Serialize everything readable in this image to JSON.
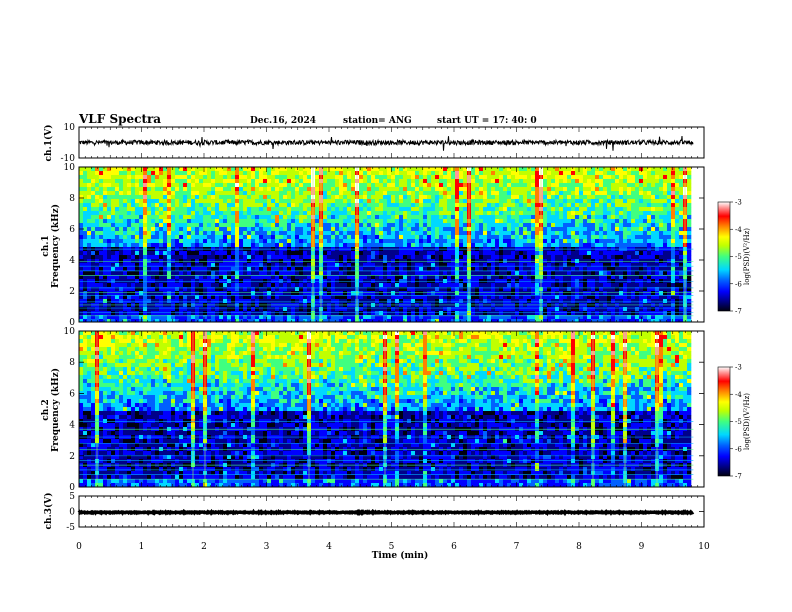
{
  "header": {
    "title": "VLF Spectra",
    "date": "Dec.16, 2024",
    "station": "station= ANG",
    "start": "start  UT =   17: 40: 0"
  },
  "colors": {
    "background_dark": "#000022",
    "colormap": [
      "#000010",
      "#00008a",
      "#0000ff",
      "#0060ff",
      "#00d8ff",
      "#40ff80",
      "#c0ff00",
      "#ffff00",
      "#ff8000",
      "#ff0000",
      "#ff9898",
      "#ffffff"
    ]
  },
  "chart_data": [
    {
      "type": "line",
      "name": "ch1-waveform",
      "ylabel": "ch.1(V)",
      "ylim": [
        -10,
        10
      ],
      "yticks": [
        "10",
        "-10"
      ],
      "baseline": 0,
      "noise_amplitude": 1.5
    },
    {
      "type": "heatmap",
      "name": "ch1-spectrogram",
      "ylabel": "ch.1 Frequency (kHz)",
      "ylim": [
        0,
        10
      ],
      "yticks": [
        "0",
        "2",
        "4",
        "6",
        "8",
        "10"
      ],
      "colorbar": {
        "label": "log(PSD)(V²/Hz)",
        "range": [
          -7,
          -3
        ],
        "ticks": [
          "-3",
          "-4",
          "-5",
          "-6",
          "-7"
        ]
      },
      "noise_lines_khz": [
        0.4,
        0.6,
        0.9,
        1.1,
        1.3,
        1.7,
        1.9,
        2.2,
        2.6,
        3.0,
        3.3,
        3.6,
        3.9,
        4.7
      ]
    },
    {
      "type": "heatmap",
      "name": "ch2-spectrogram",
      "ylabel": "ch.2 Frequency (kHz)",
      "ylim": [
        0,
        10
      ],
      "yticks": [
        "0",
        "2",
        "4",
        "6",
        "8",
        "10"
      ],
      "colorbar": {
        "label": "log(PSD)(V²/Hz)",
        "range": [
          -7,
          -3
        ],
        "ticks": [
          "-3",
          "-4",
          "-5",
          "-6",
          "-7"
        ]
      },
      "noise_lines_khz": [
        0.5,
        0.8,
        1.1,
        1.4,
        1.7,
        2.0,
        2.4,
        2.8,
        3.2,
        3.7,
        4.2
      ]
    },
    {
      "type": "line",
      "name": "ch3-waveform",
      "ylabel": "ch.3(V)",
      "ylim": [
        -5,
        5
      ],
      "yticks": [
        "5",
        "0",
        "-5"
      ],
      "baseline": -0.3,
      "noise_amplitude": 0.15
    }
  ],
  "x_axis": {
    "label": "Time  (min)",
    "range": [
      0,
      10
    ],
    "data_end": 9.83,
    "ticks": [
      "0",
      "1",
      "2",
      "3",
      "4",
      "5",
      "6",
      "7",
      "8",
      "9",
      "10"
    ]
  }
}
